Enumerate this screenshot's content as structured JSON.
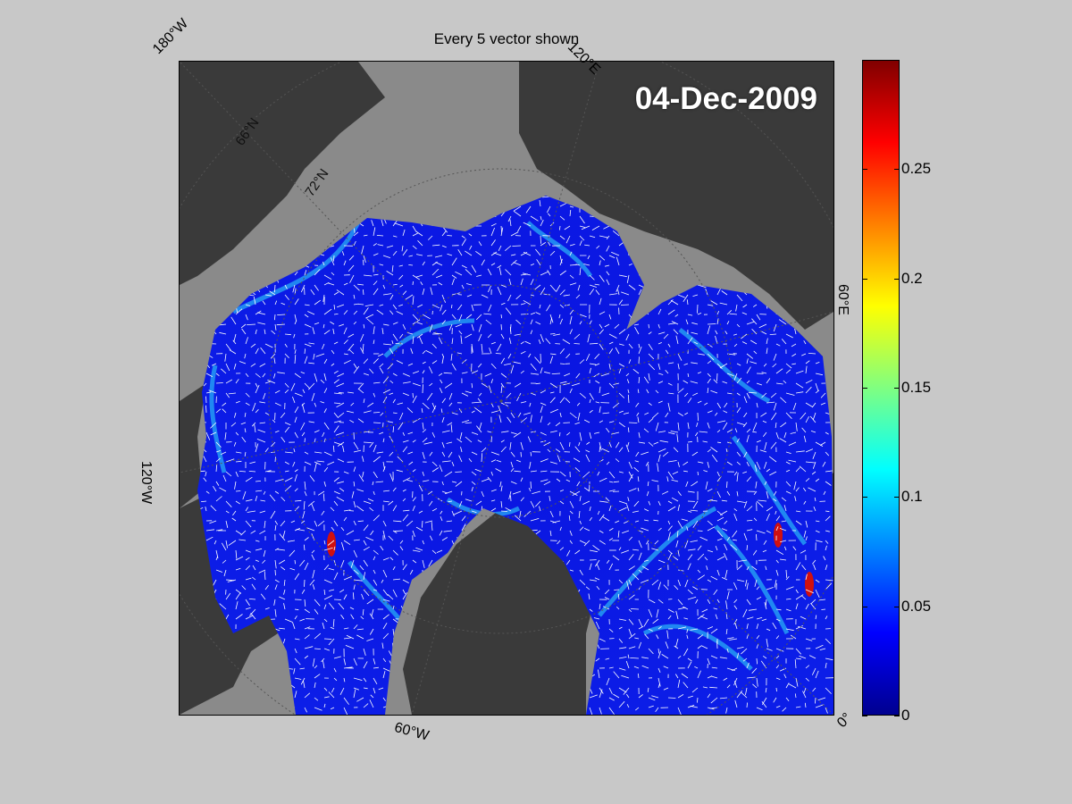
{
  "title": "Every 5 vector shown",
  "date": "04-Dec-2009",
  "edge_labels": {
    "lon_180w": "180°W",
    "lon_120e": "120°E",
    "lon_60e": "60°E",
    "lon_120w": "120°W",
    "lon_60w": "60°W",
    "lon_0": "0°"
  },
  "grid_labels": {
    "lat_72n": "72°N",
    "lat_66n": "66°N"
  },
  "colorbar": {
    "ticks": [
      "0",
      "0.05",
      "0.1",
      "0.15",
      "0.2",
      "0.25"
    ],
    "tick_values": [
      0,
      0.05,
      0.1,
      0.15,
      0.2,
      0.25
    ],
    "range": [
      0,
      0.3
    ],
    "colormap": "jet"
  },
  "colors": {
    "background": "#c8c8c8",
    "land": "#3a3a3a",
    "open_water": "#8a8a8a",
    "ice_low": "#0a14e6",
    "vector": "#ffffff"
  }
}
